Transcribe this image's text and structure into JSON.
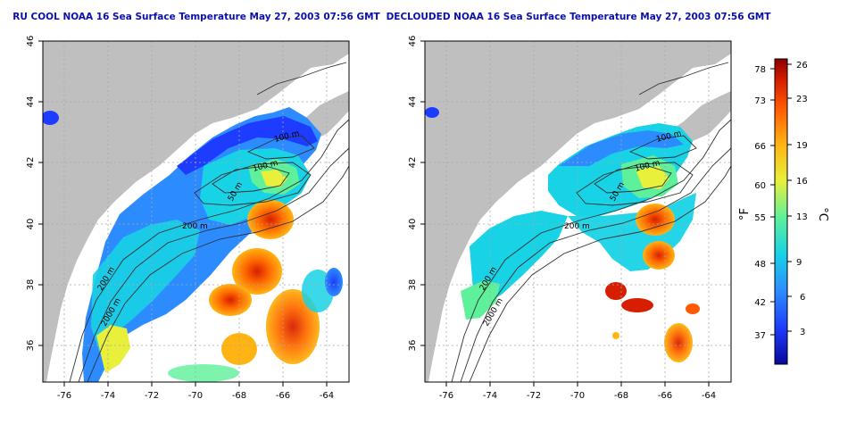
{
  "panels": [
    {
      "id": "rucool",
      "title": "RU COOL NOAA 16 Sea Surface Temperature May 27, 2003 07:56 GMT",
      "clouds": "white",
      "x_ticks": [
        "-76",
        "-74",
        "-72",
        "-70",
        "-68",
        "-66",
        "-64"
      ],
      "y_ticks": [
        "46",
        "44",
        "42",
        "40",
        "38",
        "36"
      ],
      "contour_labels": [
        "100 m",
        "100 m",
        "50 m",
        "200 m",
        "200 m",
        "2000 m"
      ]
    },
    {
      "id": "declouded",
      "title": "DECLOUDED NOAA 16 Sea Surface Temperature May 27, 2003 07:56 GMT",
      "clouds": "declouded",
      "x_ticks": [
        "-76",
        "-74",
        "-72",
        "-70",
        "-68",
        "-66",
        "-64"
      ],
      "y_ticks": [
        "46",
        "44",
        "42",
        "40",
        "38",
        "36"
      ],
      "contour_labels": [
        "100 m",
        "100 m",
        "50 m",
        "200 m",
        "200 m",
        "2000 m"
      ]
    }
  ],
  "colorbar": {
    "unit_f": "°F",
    "unit_c": "°C",
    "f_ticks": [
      "78",
      "73",
      "66",
      "60",
      "55",
      "48",
      "42",
      "37"
    ],
    "c_ticks": [
      "26",
      "23",
      "19",
      "16",
      "13",
      "9",
      "6",
      "3"
    ],
    "colors": [
      "#08089a",
      "#1e3cff",
      "#2c8cff",
      "#18d2e6",
      "#5ef09a",
      "#e8f03c",
      "#ffb414",
      "#ff5a00",
      "#d71e00",
      "#8c0000"
    ]
  },
  "palette": {
    "land": "#bfbfbf",
    "frame": "#000000",
    "title": "#0b10a8",
    "grid": "#a8a8a8",
    "contour": "#303030"
  }
}
